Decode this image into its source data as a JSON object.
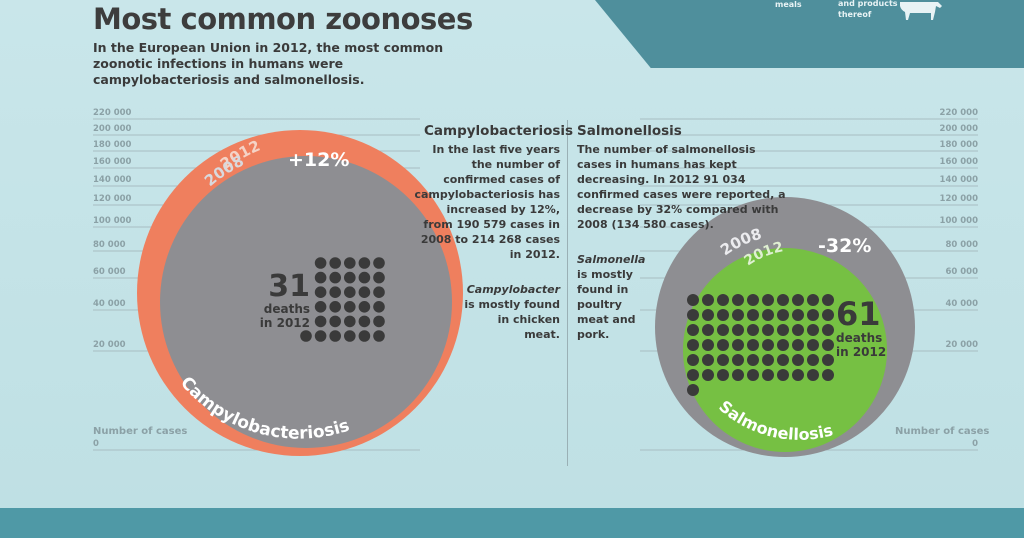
{
  "header": {
    "title": "Most common zoonoses",
    "subtitle": "In the European Union in 2012, the most common zoonotic infections in humans were campylobacteriosis and salmonellosis.",
    "banner_text_1": "meals",
    "banner_text_2": "and products thereof"
  },
  "campylo": {
    "title": "Campylobacteriosis",
    "text": "In the last five years the number of confirmed cases of campylobacteriosis has increased by 12%, from 190 579 cases in 2008 to 214 268 cases in 2012.",
    "source_italic": "Campylobacter",
    "source_rest": "is mostly found in chicken meat."
  },
  "salmo": {
    "title": "Salmonellosis",
    "text": "The number of salmonellosis cases in humans has kept decreasing. In 2012 91 034 confirmed cases were reported, a decrease by 32% compared with 2008 (134 580 cases).",
    "source_italic": "Salmonella",
    "source_rest": "is mostly found in poultry meat and pork."
  },
  "axis": {
    "ticks": [
      "220 000",
      "200 000",
      "180 000",
      "160 000",
      "140 000",
      "120 000",
      "100 000",
      "80 000",
      "60 000",
      "40 000",
      "20 000",
      "0"
    ],
    "caption": "Number of cases"
  },
  "chart_data": {
    "type": "bubble",
    "y_axis": {
      "label": "Number of cases",
      "ylim": [
        0,
        220000
      ]
    },
    "series": [
      {
        "name": "Campylobacteriosis",
        "cases_2008": 190579,
        "cases_2012": 214268,
        "change": "+12%",
        "deaths_2012": 31,
        "label_2008": "2008",
        "label_2012": "2012",
        "deaths_number": "31",
        "deaths_text": "deaths",
        "deaths_year": "in 2012",
        "colors": {
          "2008": "#8e8e92",
          "2012": "#ef7f5e"
        }
      },
      {
        "name": "Salmonellosis",
        "cases_2008": 134580,
        "cases_2012": 91034,
        "change": "-32%",
        "deaths_2012": 61,
        "label_2008": "2008",
        "label_2012": "2012",
        "deaths_number": "61",
        "deaths_text": "deaths",
        "deaths_year": "in 2012",
        "colors": {
          "2008": "#8e8e92",
          "2012": "#76c043"
        }
      }
    ]
  }
}
